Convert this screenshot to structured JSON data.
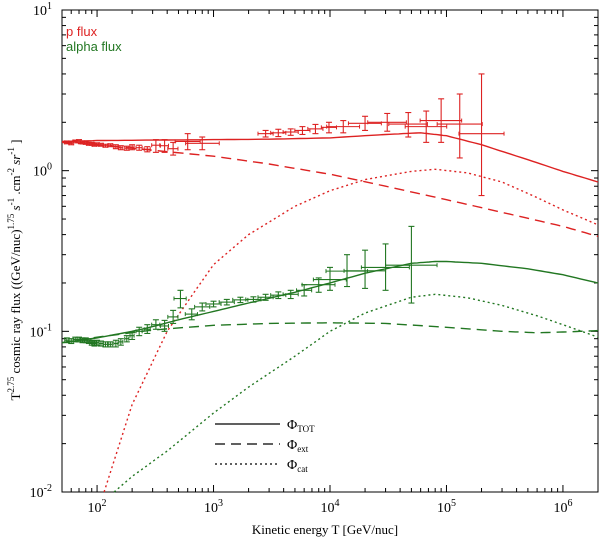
{
  "chart_data": {
    "type": "line",
    "xscale": "log",
    "yscale": "log",
    "xlim": [
      50,
      2000000
    ],
    "ylim": [
      0.01,
      10
    ],
    "xlabel": "Kinetic energy T [GeV/nuc]",
    "ylabel": "T^2.75 cosmic ray flux ((GeV/nuc)^1.75 s^-1 cm^-2 sr^-1)",
    "ylabel_parts": {
      "t": "T",
      "t_exp": "2.75",
      "main": " cosmic ray flux ((GeV/nuc)",
      "e1": "1.75",
      "s": " s",
      "e2": "-1",
      "cm": " .cm",
      "e3": "-2",
      "sr": " sr",
      "e4": "-1",
      "close": " ]"
    },
    "x_ticks": [
      {
        "base": "10",
        "exp": "2",
        "value": 100
      },
      {
        "base": "10",
        "exp": "3",
        "value": 1000
      },
      {
        "base": "10",
        "exp": "4",
        "value": 10000
      },
      {
        "base": "10",
        "exp": "5",
        "value": 100000
      },
      {
        "base": "10",
        "exp": "6",
        "value": 1000000
      }
    ],
    "y_ticks": [
      {
        "base": "10",
        "exp": "-2",
        "value": 0.01
      },
      {
        "base": "10",
        "exp": "-1",
        "value": 0.1
      },
      {
        "base": "10",
        "exp": "0",
        "value": 1
      },
      {
        "base": "10",
        "exp": "1",
        "value": 10
      }
    ],
    "top_legend": [
      {
        "label": "p flux",
        "color": "#dd2222"
      },
      {
        "label": "alpha flux",
        "color": "#227722"
      }
    ],
    "line_legend": [
      {
        "symbol": "Φ",
        "sub": "TOT",
        "style": "solid"
      },
      {
        "symbol": "Φ",
        "sub": "ext",
        "style": "dashed"
      },
      {
        "symbol": "Φ",
        "sub": "cat",
        "style": "dotted"
      }
    ],
    "series": [
      {
        "name": "p total",
        "group": "p",
        "color": "#dd2222",
        "style": "solid",
        "x": [
          50,
          100,
          300,
          1000,
          3000,
          10000,
          30000,
          60000,
          100000,
          200000,
          500000,
          1000000,
          2000000
        ],
        "y": [
          1.52,
          1.54,
          1.55,
          1.56,
          1.57,
          1.6,
          1.68,
          1.72,
          1.65,
          1.45,
          1.17,
          0.99,
          0.85
        ]
      },
      {
        "name": "p external",
        "group": "p",
        "color": "#dd2222",
        "style": "dashed",
        "x": [
          50,
          100,
          300,
          1000,
          3000,
          10000,
          30000,
          100000,
          300000,
          1000000,
          2000000
        ],
        "y": [
          1.5,
          1.45,
          1.34,
          1.23,
          1.1,
          0.95,
          0.8,
          0.66,
          0.55,
          0.45,
          0.39
        ]
      },
      {
        "name": "p catastrophic",
        "group": "p",
        "color": "#dd2222",
        "style": "dotted",
        "x": [
          115,
          200,
          400,
          700,
          1000,
          2000,
          5000,
          10000,
          20000,
          50000,
          80000,
          150000,
          300000,
          600000,
          1000000,
          2000000
        ],
        "y": [
          0.01,
          0.035,
          0.1,
          0.18,
          0.26,
          0.4,
          0.6,
          0.75,
          0.88,
          0.99,
          1.02,
          0.97,
          0.85,
          0.68,
          0.57,
          0.46
        ]
      },
      {
        "name": "alpha total",
        "group": "alpha",
        "color": "#227722",
        "style": "solid",
        "x": [
          50,
          100,
          200,
          300,
          500,
          1000,
          2000,
          5000,
          10000,
          20000,
          50000,
          80000,
          100000,
          200000,
          500000,
          1000000,
          2000000
        ],
        "y": [
          0.085,
          0.091,
          0.1,
          0.107,
          0.118,
          0.133,
          0.15,
          0.175,
          0.2,
          0.23,
          0.265,
          0.272,
          0.272,
          0.265,
          0.245,
          0.225,
          0.2
        ]
      },
      {
        "name": "alpha external",
        "group": "alpha",
        "color": "#227722",
        "style": "dashed",
        "x": [
          50,
          100,
          300,
          1000,
          3000,
          10000,
          30000,
          100000,
          300000,
          600000,
          1000000,
          2000000
        ],
        "y": [
          0.085,
          0.092,
          0.102,
          0.109,
          0.112,
          0.113,
          0.112,
          0.106,
          0.1,
          0.098,
          0.099,
          0.101
        ]
      },
      {
        "name": "alpha catastrophic",
        "group": "alpha",
        "color": "#227722",
        "style": "dotted",
        "x": [
          140,
          200,
          400,
          1000,
          2000,
          5000,
          10000,
          20000,
          50000,
          80000,
          150000,
          300000,
          600000,
          1000000,
          2000000
        ],
        "y": [
          0.01,
          0.0125,
          0.018,
          0.031,
          0.045,
          0.07,
          0.1,
          0.13,
          0.163,
          0.17,
          0.162,
          0.145,
          0.125,
          0.11,
          0.092
        ]
      }
    ],
    "points": [
      {
        "name": "p data",
        "color": "#dd2222",
        "x": [
          55,
          60,
          65,
          70,
          75,
          80,
          85,
          90,
          95,
          100,
          108,
          118,
          130,
          145,
          160,
          180,
          200,
          230,
          270,
          320,
          380,
          450,
          600,
          800,
          2800,
          3600,
          4600,
          5800,
          7500,
          9800,
          13000,
          20000,
          31000,
          47000,
          67000,
          90000,
          130000,
          200000
        ],
        "y": [
          1.5,
          1.48,
          1.52,
          1.53,
          1.5,
          1.49,
          1.47,
          1.47,
          1.45,
          1.46,
          1.45,
          1.43,
          1.44,
          1.41,
          1.39,
          1.38,
          1.4,
          1.39,
          1.36,
          1.44,
          1.43,
          1.37,
          1.52,
          1.48,
          1.7,
          1.72,
          1.74,
          1.78,
          1.82,
          1.86,
          1.88,
          1.97,
          2.0,
          1.95,
          1.88,
          2.05,
          1.95,
          1.7
        ],
        "ylo": [
          1.47,
          1.45,
          1.49,
          1.5,
          1.47,
          1.46,
          1.44,
          1.44,
          1.42,
          1.43,
          1.42,
          1.4,
          1.41,
          1.37,
          1.35,
          1.34,
          1.35,
          1.34,
          1.31,
          1.3,
          1.3,
          1.25,
          1.35,
          1.35,
          1.62,
          1.63,
          1.66,
          1.68,
          1.7,
          1.72,
          1.72,
          1.78,
          1.76,
          1.62,
          1.5,
          1.5,
          1.2,
          0.7
        ],
        "yhi": [
          1.53,
          1.51,
          1.55,
          1.56,
          1.53,
          1.52,
          1.5,
          1.5,
          1.48,
          1.49,
          1.48,
          1.46,
          1.47,
          1.45,
          1.43,
          1.42,
          1.45,
          1.44,
          1.41,
          1.56,
          1.56,
          1.5,
          1.7,
          1.62,
          1.78,
          1.81,
          1.82,
          1.88,
          1.94,
          2.0,
          2.05,
          2.18,
          2.27,
          2.3,
          2.35,
          2.8,
          3.0,
          4.0
        ],
        "xlo": [
          0.96,
          0.96,
          0.96,
          0.96,
          0.96,
          0.96,
          0.96,
          0.96,
          0.96,
          0.96,
          0.96,
          0.96,
          0.96,
          0.96,
          0.96,
          0.96,
          0.96,
          0.94,
          0.94,
          0.92,
          0.92,
          0.9,
          0.78,
          0.72,
          0.86,
          0.86,
          0.86,
          0.86,
          0.86,
          0.86,
          0.72,
          0.72,
          0.68,
          0.68,
          0.66,
          0.66,
          0.64,
          0.64
        ],
        "xhi": [
          1.04,
          1.04,
          1.04,
          1.04,
          1.04,
          1.04,
          1.04,
          1.04,
          1.04,
          1.04,
          1.04,
          1.04,
          1.04,
          1.04,
          1.04,
          1.04,
          1.04,
          1.06,
          1.06,
          1.08,
          1.08,
          1.1,
          1.28,
          1.4,
          1.16,
          1.16,
          1.16,
          1.16,
          1.16,
          1.16,
          1.38,
          1.38,
          1.46,
          1.46,
          1.5,
          1.5,
          1.56,
          1.56
        ]
      },
      {
        "name": "alpha data",
        "color": "#227722",
        "x": [
          55,
          60,
          65,
          70,
          75,
          80,
          85,
          90,
          95,
          100,
          108,
          118,
          130,
          145,
          160,
          180,
          200,
          230,
          270,
          320,
          380,
          450,
          520,
          650,
          800,
          1000,
          1300,
          1700,
          2200,
          2800,
          3600,
          4600,
          6000,
          8000,
          10000,
          14000,
          20000,
          30000,
          50000
        ],
        "y": [
          0.088,
          0.087,
          0.089,
          0.089,
          0.088,
          0.088,
          0.087,
          0.085,
          0.084,
          0.085,
          0.084,
          0.083,
          0.083,
          0.084,
          0.086,
          0.09,
          0.094,
          0.1,
          0.103,
          0.11,
          0.108,
          0.123,
          0.16,
          0.128,
          0.142,
          0.148,
          0.152,
          0.157,
          0.158,
          0.163,
          0.168,
          0.17,
          0.18,
          0.195,
          0.21,
          0.237,
          0.238,
          0.25,
          0.258
        ],
        "ylo": [
          0.085,
          0.084,
          0.086,
          0.086,
          0.085,
          0.085,
          0.084,
          0.082,
          0.081,
          0.082,
          0.081,
          0.08,
          0.08,
          0.08,
          0.082,
          0.086,
          0.089,
          0.094,
          0.097,
          0.103,
          0.1,
          0.112,
          0.14,
          0.118,
          0.134,
          0.142,
          0.146,
          0.151,
          0.152,
          0.156,
          0.16,
          0.16,
          0.166,
          0.175,
          0.18,
          0.19,
          0.185,
          0.18,
          0.15
        ],
        "yhi": [
          0.091,
          0.09,
          0.092,
          0.092,
          0.091,
          0.091,
          0.09,
          0.088,
          0.087,
          0.088,
          0.087,
          0.086,
          0.086,
          0.088,
          0.09,
          0.094,
          0.099,
          0.106,
          0.11,
          0.118,
          0.117,
          0.135,
          0.18,
          0.138,
          0.15,
          0.154,
          0.158,
          0.163,
          0.164,
          0.17,
          0.176,
          0.18,
          0.195,
          0.215,
          0.25,
          0.3,
          0.32,
          0.35,
          0.45
        ],
        "xlo": [
          0.96,
          0.96,
          0.96,
          0.96,
          0.96,
          0.96,
          0.96,
          0.96,
          0.96,
          0.96,
          0.96,
          0.96,
          0.96,
          0.96,
          0.96,
          0.96,
          0.96,
          0.94,
          0.94,
          0.92,
          0.92,
          0.9,
          0.88,
          0.88,
          0.86,
          0.86,
          0.86,
          0.86,
          0.86,
          0.86,
          0.86,
          0.86,
          0.86,
          0.72,
          0.72,
          0.66,
          0.66,
          0.62,
          0.6
        ],
        "xhi": [
          1.04,
          1.04,
          1.04,
          1.04,
          1.04,
          1.04,
          1.04,
          1.04,
          1.04,
          1.04,
          1.04,
          1.04,
          1.04,
          1.04,
          1.04,
          1.04,
          1.04,
          1.06,
          1.06,
          1.08,
          1.08,
          1.1,
          1.12,
          1.12,
          1.16,
          1.16,
          1.16,
          1.16,
          1.16,
          1.16,
          1.16,
          1.16,
          1.16,
          1.38,
          1.38,
          1.5,
          1.5,
          1.6,
          1.66
        ]
      }
    ]
  }
}
